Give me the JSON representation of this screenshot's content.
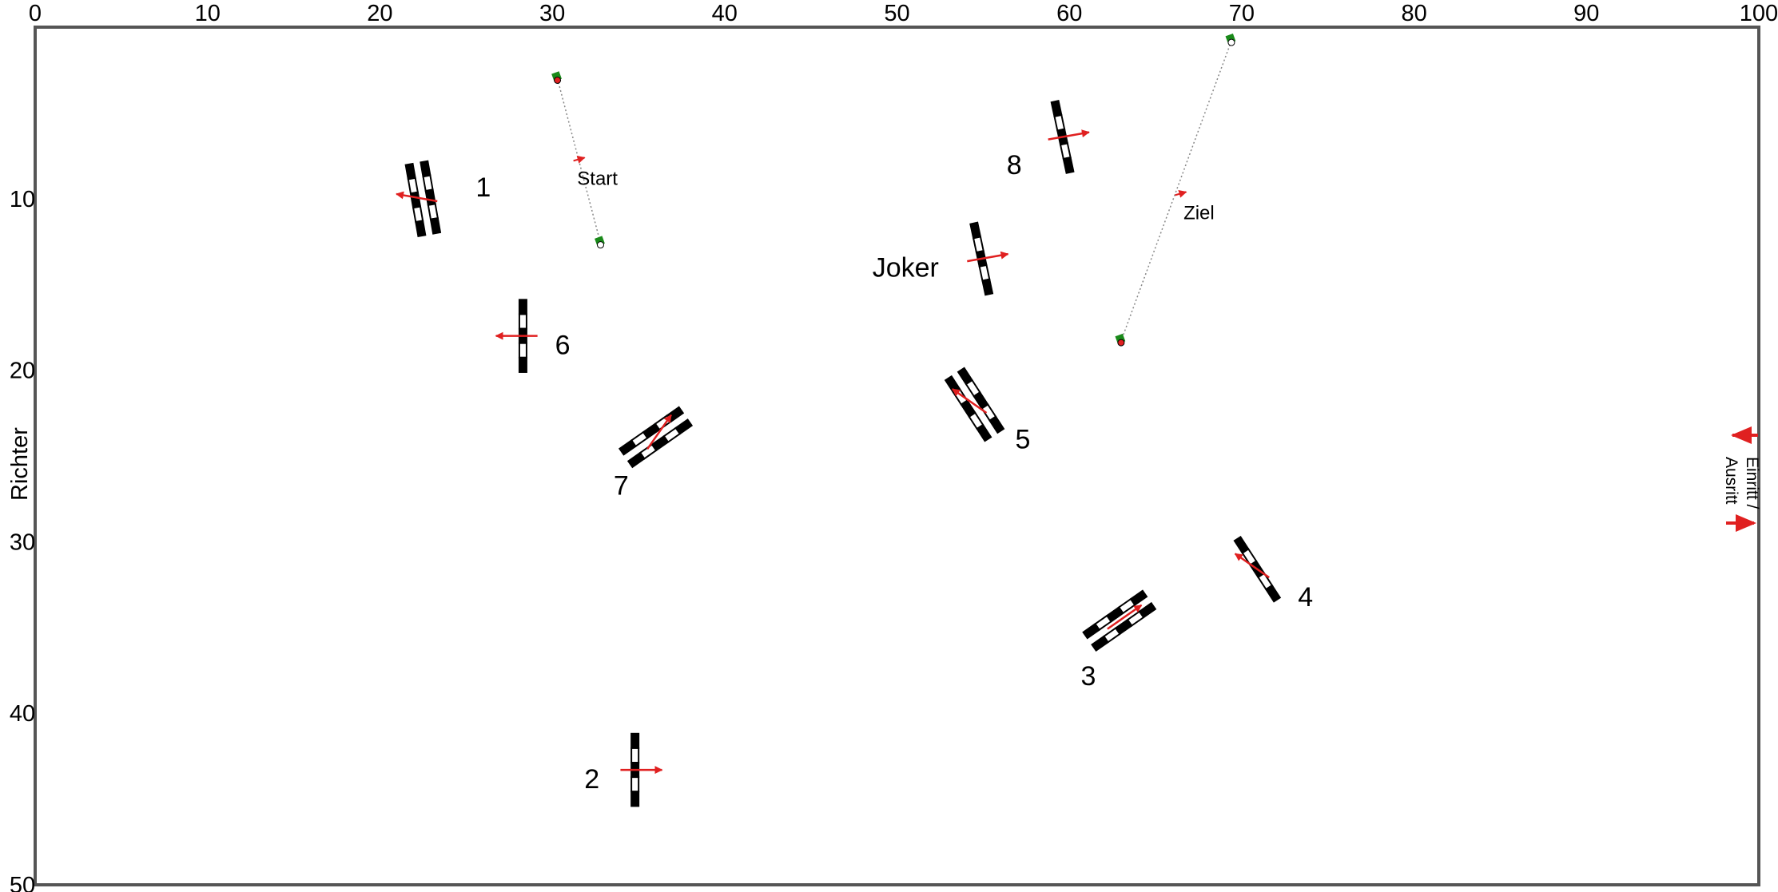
{
  "arena": {
    "x_range": [
      0,
      100
    ],
    "y_range": [
      0,
      50
    ],
    "x_ticks": [
      "0",
      "10",
      "20",
      "30",
      "40",
      "50",
      "60",
      "70",
      "80",
      "90",
      "100"
    ],
    "y_ticks": [
      "10",
      "20",
      "30",
      "40",
      "50"
    ],
    "side_label": "Richter",
    "entry_label_line1": "Einritt /",
    "entry_label_line2": "Ausritt",
    "colors": {
      "border": "#555555",
      "arrow": "#e02020",
      "cone": "#1a8a1a",
      "pole_dark": "#000000",
      "pole_light": "#ffffff"
    }
  },
  "start_line": {
    "label": "Start",
    "from": [
      30.3,
      3
    ],
    "to": [
      32.8,
      12.6
    ],
    "arrow_at": [
      31.6,
      7.7
    ]
  },
  "finish_line": {
    "label": "Ziel",
    "from": [
      69.4,
      0.8
    ],
    "to": [
      63.0,
      18.3
    ],
    "arrow_at": [
      66.5,
      9.7
    ]
  },
  "obstacles": [
    {
      "label": "1",
      "center": [
        22.5,
        10
      ],
      "angle": -10,
      "bars": 2,
      "length": 4.2,
      "arrow_dir": -170,
      "label_at": [
        26.0,
        9.3
      ]
    },
    {
      "label": "2",
      "center": [
        34.8,
        43.3
      ],
      "angle": 0,
      "bars": 1,
      "length": 4.2,
      "arrow_dir": 0,
      "label_at": [
        32.3,
        43.8
      ]
    },
    {
      "label": "3",
      "center": [
        62.9,
        34.6
      ],
      "angle": 55,
      "bars": 2,
      "length": 4.2,
      "arrow_dir": -35,
      "label_at": [
        61.1,
        37.8
      ]
    },
    {
      "label": "4",
      "center": [
        70.9,
        31.6
      ],
      "angle": -33,
      "bars": 1,
      "length": 4.2,
      "arrow_dir": -145,
      "label_at": [
        73.7,
        33.2
      ]
    },
    {
      "label": "5",
      "center": [
        54.5,
        22.0
      ],
      "angle": -33,
      "bars": 2,
      "length": 4.2,
      "arrow_dir": -145,
      "label_at": [
        57.3,
        24.0
      ]
    },
    {
      "label": "6",
      "center": [
        28.3,
        18.0
      ],
      "angle": 0,
      "bars": 1,
      "length": 4.2,
      "arrow_dir": 180,
      "label_at": [
        30.6,
        18.5
      ]
    },
    {
      "label": "7",
      "center": [
        36.0,
        23.9
      ],
      "angle": 55,
      "bars": 2,
      "length": 4.2,
      "arrow_dir": -55,
      "label_at": [
        34.0,
        26.7
      ]
    },
    {
      "label": "8",
      "center": [
        59.6,
        6.4
      ],
      "angle": -12,
      "bars": 1,
      "length": 4.2,
      "arrow_dir": -10,
      "label_at": [
        56.8,
        8.0
      ]
    },
    {
      "label": "Joker",
      "center": [
        54.9,
        13.5
      ],
      "angle": -12,
      "bars": 1,
      "length": 4.2,
      "arrow_dir": -10,
      "label_at": [
        50.5,
        14.0
      ]
    }
  ]
}
